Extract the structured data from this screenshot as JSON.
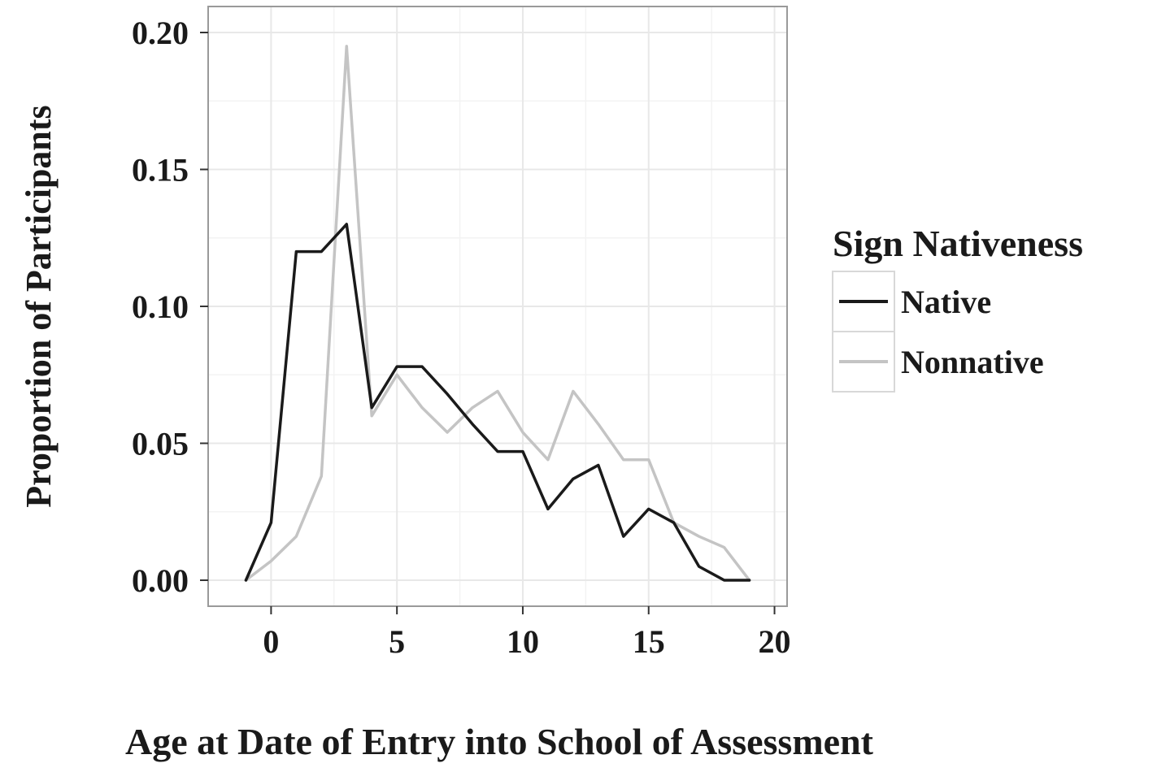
{
  "chart_data": {
    "type": "line",
    "title": "",
    "xlabel": "Age at Date of Entry into School of Assessment",
    "ylabel": "Proportion of Participants",
    "xlim": [
      -2.5,
      20.5
    ],
    "ylim": [
      -0.0095,
      0.2095
    ],
    "x_ticks": [
      0,
      5,
      10,
      15,
      20
    ],
    "y_ticks": [
      0.0,
      0.05,
      0.1,
      0.15,
      0.2
    ],
    "x_tick_labels": [
      "0",
      "5",
      "10",
      "15",
      "20"
    ],
    "y_tick_labels": [
      "0.00",
      "0.05",
      "0.10",
      "0.15",
      "0.20"
    ],
    "grid": true,
    "legend": {
      "title": "Sign Nativeness",
      "position": "right"
    },
    "x": [
      -1,
      0,
      1,
      2,
      3,
      4,
      5,
      6,
      7,
      8,
      9,
      10,
      11,
      12,
      13,
      14,
      15,
      16,
      17,
      18,
      19
    ],
    "series": [
      {
        "name": "Native",
        "color": "#1a1a1a",
        "values": [
          0.0,
          0.021,
          0.12,
          0.12,
          0.13,
          0.063,
          0.078,
          0.078,
          0.068,
          0.057,
          0.047,
          0.047,
          0.026,
          0.037,
          0.042,
          0.016,
          0.026,
          0.021,
          0.005,
          0.0,
          0.0
        ]
      },
      {
        "name": "Nonnative",
        "color": "#c4c4c4",
        "values": [
          0.0,
          0.007,
          0.016,
          0.038,
          0.195,
          0.06,
          0.075,
          0.063,
          0.054,
          0.063,
          0.069,
          0.054,
          0.044,
          0.069,
          0.057,
          0.044,
          0.044,
          0.021,
          0.016,
          0.012,
          0.0
        ]
      }
    ]
  }
}
